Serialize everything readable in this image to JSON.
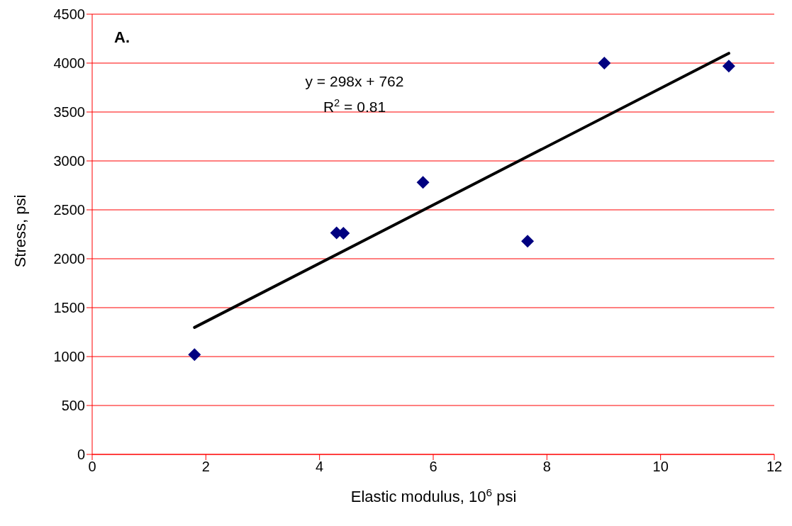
{
  "chart_data": {
    "type": "scatter",
    "xlabel": "Elastic modulus, 10$^{6}$ psi",
    "ylabel": "Stress, psi",
    "annotations": [
      "A.",
      "y = 298x + 762",
      "R$^{2}$ = 0.81"
    ],
    "series": [
      {
        "color": "#000080",
        "marker": "diamond",
        "x": [
          1.8,
          4.3,
          4.42,
          5.82,
          7.66,
          9.01,
          11.2
        ],
        "values": [
          1020,
          2265,
          2260,
          2780,
          2180,
          4000,
          3970
        ]
      },
      {
        "type": "line",
        "color": "#000000",
        "marker": "none",
        "line_style": "solid",
        "x": [
          1.8,
          11.2
        ],
        "values": [
          1298,
          4100
        ]
      }
    ],
    "xlim": [
      0,
      12
    ],
    "xticks": [
      0,
      2,
      4,
      6,
      8,
      10,
      12
    ],
    "ylim": [
      0,
      4500
    ],
    "yticks": [
      0,
      500,
      1000,
      1500,
      2000,
      2500,
      3000,
      3500,
      4000,
      4500
    ],
    "grid": "y",
    "legend": false
  }
}
